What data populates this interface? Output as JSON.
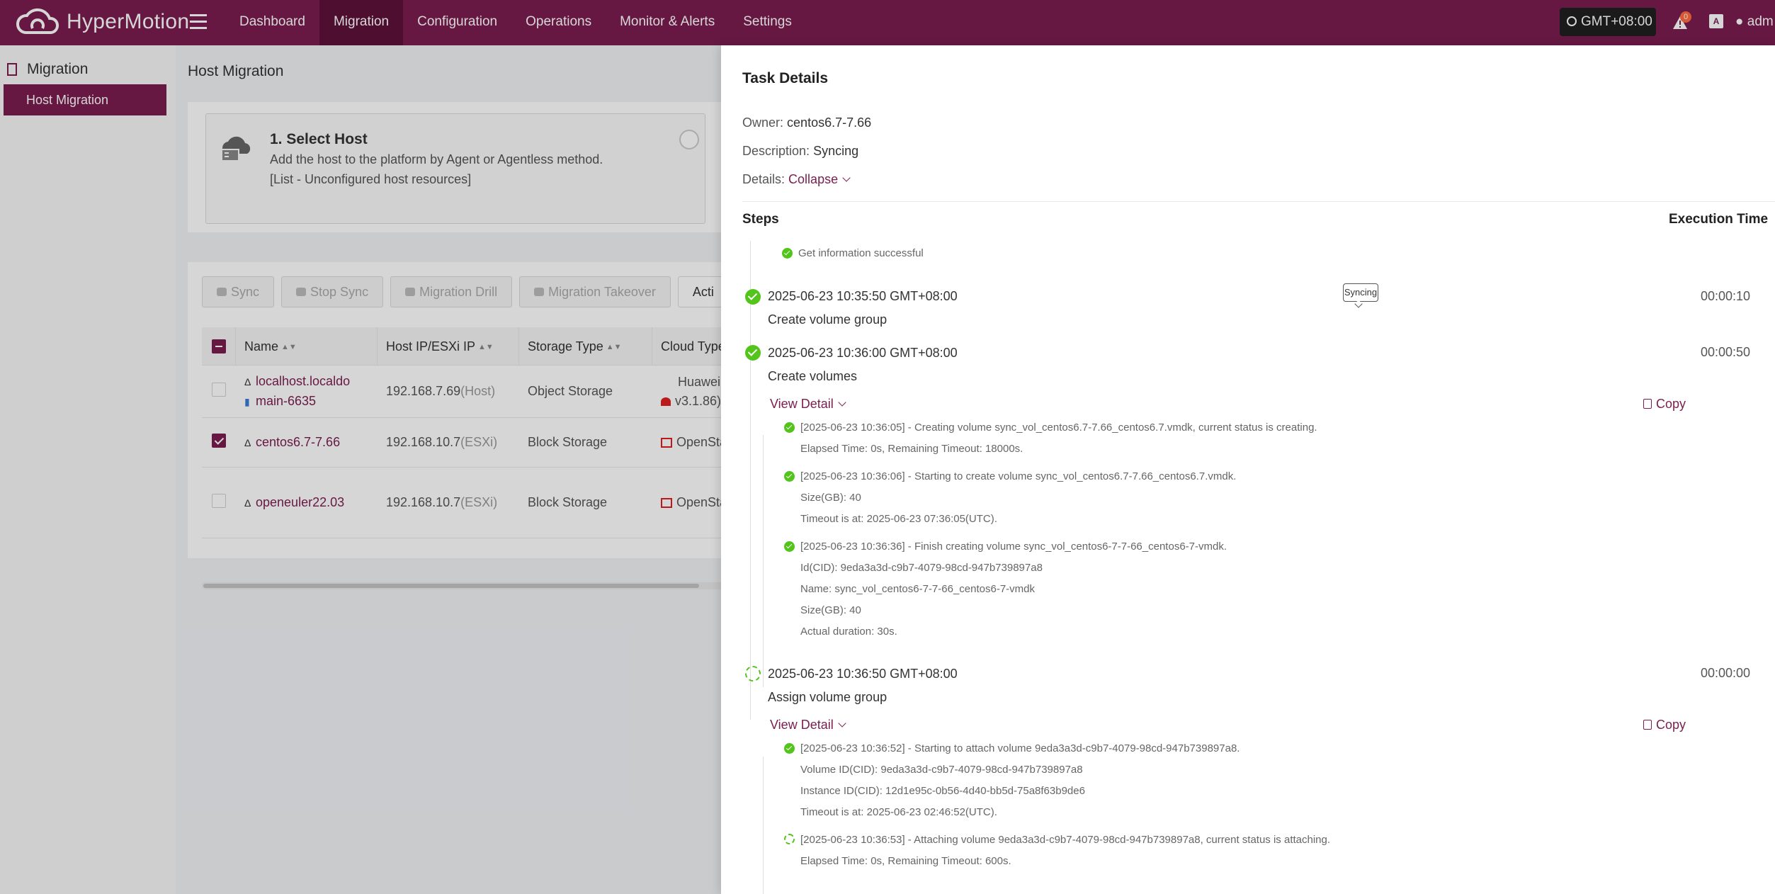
{
  "app": {
    "name": "HyperMotion"
  },
  "nav": [
    "Dashboard",
    "Migration",
    "Configuration",
    "Operations",
    "Monitor & Alerts",
    "Settings"
  ],
  "topbar": {
    "timezone": "GMT+08:00",
    "alert_count": "0",
    "user": "adm"
  },
  "sidebar": {
    "heading": "Migration",
    "items": [
      {
        "label": "Host Migration",
        "active": true
      }
    ]
  },
  "page": {
    "title": "Host Migration"
  },
  "select_host": {
    "title": "1. Select Host",
    "description": "Add the host to the platform by Agent or Agentless method.",
    "list_text": "[List - Unconfigured host resources]"
  },
  "toolbar": [
    "Sync",
    "Stop Sync",
    "Migration Drill",
    "Migration Takeover",
    "Acti"
  ],
  "table": {
    "headers": [
      "Name",
      "Host IP/ESXi IP",
      "Storage Type",
      "Cloud Type"
    ],
    "rows": [
      {
        "name_line1": "localhost.localdo",
        "name_line2": "main-6635",
        "ip": "192.168.7.69",
        "ip_type": "(Host)",
        "storage": "Object Storage",
        "cloud_line1": "Huawei",
        "cloud_line2": "v3.1.86)",
        "checked": false
      },
      {
        "name": "centos6.7-7.66",
        "ip": "192.168.10.7",
        "ip_type": "(ESXi)",
        "storage": "Block Storage",
        "cloud": "OpenSta",
        "checked": true
      },
      {
        "name": "openeuler22.03",
        "ip": "192.168.10.7",
        "ip_type": "(ESXi)",
        "storage": "Block Storage",
        "cloud": "OpenSta",
        "checked": false
      }
    ]
  },
  "drawer": {
    "title": "Task Details",
    "owner_label": "Owner:",
    "owner": "centos6.7-7.66",
    "desc_label": "Description:",
    "desc": "Syncing",
    "details_label": "Details:",
    "collapse": "Collapse",
    "steps_header": "Steps",
    "exec_header": "Execution Time",
    "view_detail": "View Detail",
    "copy": "Copy",
    "tooltip": "Syncing",
    "prev_log": "Get information successful",
    "steps": [
      {
        "time": "2025-06-23 10:35:50 GMT+08:00",
        "name": "Create volume group",
        "duration": "00:00:10",
        "status": "done"
      },
      {
        "time": "2025-06-23 10:36:00 GMT+08:00",
        "name": "Create volumes",
        "duration": "00:00:50",
        "status": "done",
        "logs": [
          "[2025-06-23 10:36:05] - Creating volume sync_vol_centos6.7-7.66_centos6.7.vmdk, current status is creating.",
          "Elapsed Time: 0s, Remaining Timeout: 18000s.",
          "[2025-06-23 10:36:06] - Starting to create volume sync_vol_centos6.7-7.66_centos6.7.vmdk.",
          "Size(GB): 40",
          "Timeout is at: 2025-06-23 07:36:05(UTC).",
          "[2025-06-23 10:36:36] - Finish creating volume sync_vol_centos6-7-7-66_centos6-7-vmdk.",
          "Id(CID): 9eda3a3d-c9b7-4079-98cd-947b739897a8",
          "Name: sync_vol_centos6-7-7-66_centos6-7-vmdk",
          "Size(GB): 40",
          "Actual duration: 30s."
        ]
      },
      {
        "time": "2025-06-23 10:36:50 GMT+08:00",
        "name": "Assign volume group",
        "duration": "00:00:00",
        "status": "running",
        "logs": [
          "[2025-06-23 10:36:52] - Starting to attach volume 9eda3a3d-c9b7-4079-98cd-947b739897a8.",
          "Volume ID(CID): 9eda3a3d-c9b7-4079-98cd-947b739897a8",
          "Instance ID(CID): 12d1e95c-0b56-4d40-bb5d-75a8f63b9de6",
          "Timeout is at: 2025-06-23 02:46:52(UTC).",
          "[2025-06-23 10:36:53] - Attaching volume 9eda3a3d-c9b7-4079-98cd-947b739897a8, current status is attaching.",
          "Elapsed Time: 0s, Remaining Timeout: 600s."
        ]
      }
    ]
  },
  "colors": {
    "brand": "#7a1d4f",
    "success": "#52c41a"
  }
}
